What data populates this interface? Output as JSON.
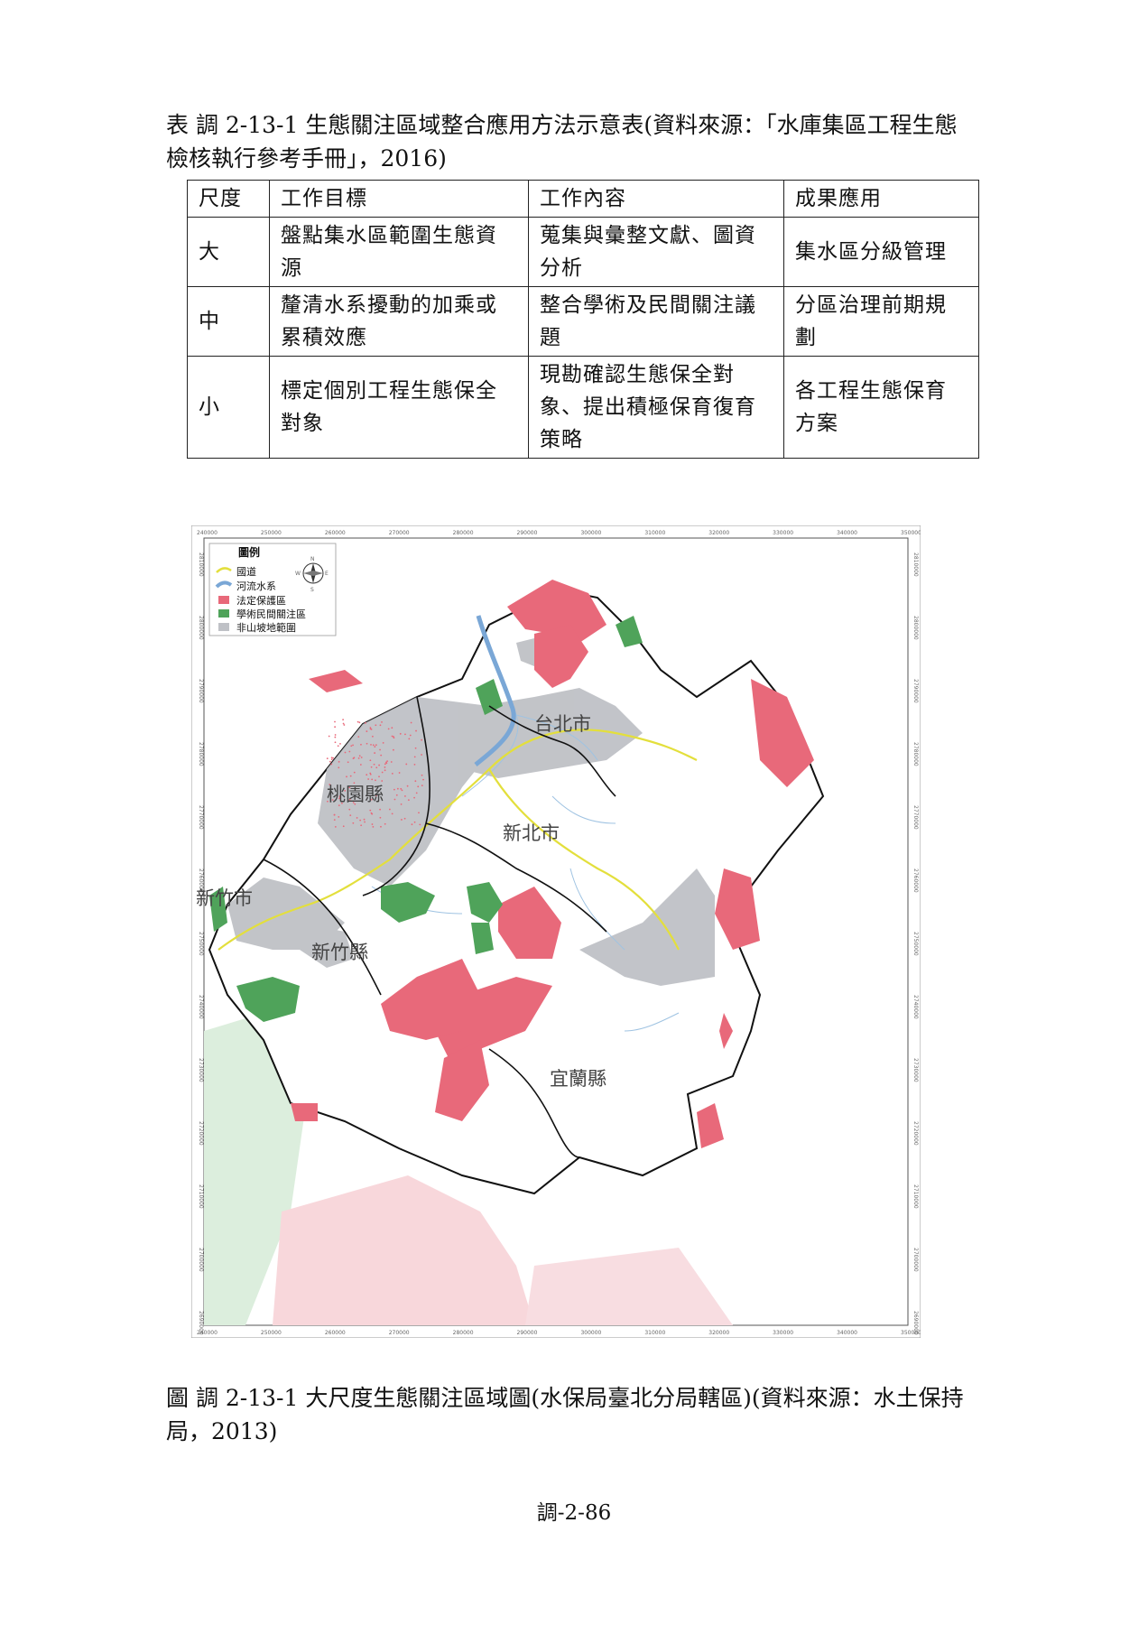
{
  "table_caption": "表 調 2-13-1 生態關注區域整合應用方法示意表(資料來源：「水庫集區工程生態檢核執行參考手冊」，2016)",
  "table": {
    "headers": [
      "尺度",
      "工作目標",
      "工作內容",
      "成果應用"
    ],
    "rows": [
      [
        "大",
        "盤點集水區範圍生態資源",
        "蒐集與彙整文獻、圖資分析",
        "集水區分級管理"
      ],
      [
        "中",
        "釐清水系擾動的加乘或累積效應",
        "整合學術及民間關注議題",
        "分區治理前期規劃"
      ],
      [
        "小",
        "標定個別工程生態保全對象",
        "現勘確認生態保全對象、提出積極保育復育策略",
        "各工程生態保育方案"
      ]
    ]
  },
  "map": {
    "legend": {
      "title": "圖例",
      "items": [
        {
          "label": "國道",
          "icon": "highway-line-icon",
          "color": "#e3df3c"
        },
        {
          "label": "河流水系",
          "icon": "river-icon",
          "color": "#7aa7d6"
        },
        {
          "label": "法定保護區",
          "icon": "protected-area-icon",
          "color": "#e8697a"
        },
        {
          "label": "學術民間關注區",
          "icon": "concern-area-icon",
          "color": "#4fa35a"
        },
        {
          "label": "非山坡地範圍",
          "icon": "non-slope-area-icon",
          "color": "#bfc1c6"
        }
      ]
    },
    "compass": {
      "n": "N",
      "s": "S",
      "e": "E",
      "w": "W"
    },
    "places": [
      "台北市",
      "桃園縣",
      "新北市",
      "新竹市",
      "新竹縣",
      "宜蘭縣"
    ],
    "x_ticks": [
      "240000",
      "250000",
      "260000",
      "270000",
      "280000",
      "290000",
      "300000",
      "310000",
      "320000",
      "330000",
      "340000",
      "350000"
    ],
    "y_ticks": [
      "2810000",
      "2800000",
      "2790000",
      "2780000",
      "2770000",
      "2760000",
      "2750000",
      "2740000",
      "2730000",
      "2720000",
      "2710000",
      "2700000",
      "2690000"
    ],
    "colors": {
      "protected": "#e8697a",
      "concern": "#4fa35a",
      "non_slope": "#bfc1c6",
      "highway": "#e3df3c",
      "river": "#7aa7d6"
    }
  },
  "figure_caption": "圖 調 2-13-1 大尺度生態關注區域圖(水保局臺北分局轄區)(資料來源：水土保持局，2013)",
  "page_number": "調-2-86"
}
